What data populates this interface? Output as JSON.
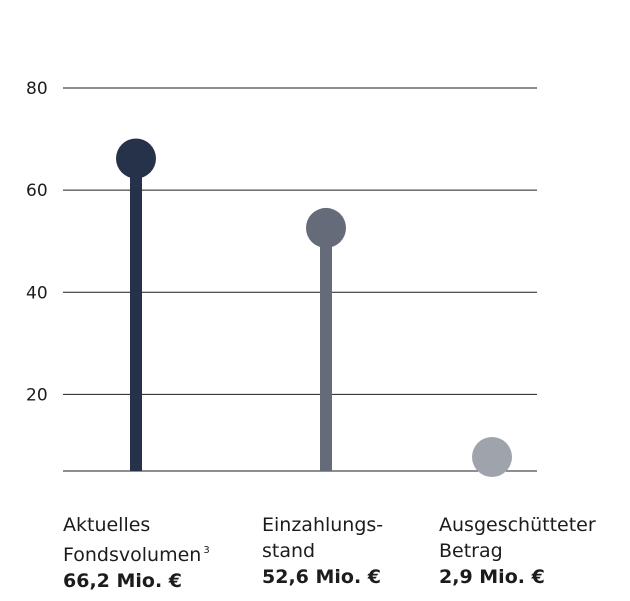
{
  "chart_data": {
    "type": "lollipop",
    "title": "",
    "xlabel": "",
    "ylabel": "",
    "y_ticks": [
      20,
      40,
      60,
      80
    ],
    "ylim": [
      5,
      80
    ],
    "grid": true,
    "categories": [
      {
        "line1": "Aktuelles",
        "line2": "Fondsvolumen",
        "footnote": "3",
        "value_label": "66,2 Mio. €",
        "value": 66.2,
        "color": "#26324a"
      },
      {
        "line1": "Einzahlungs-",
        "line2": "stand",
        "footnote": "",
        "value_label": "52,6 Mio. €",
        "value": 52.6,
        "color": "#656b78"
      },
      {
        "line1": "Ausgeschütteter",
        "line2": "Betrag",
        "footnote": "",
        "value_label": "2,9 Mio. €",
        "value": 2.9,
        "color": "#9ea3ac"
      }
    ]
  }
}
